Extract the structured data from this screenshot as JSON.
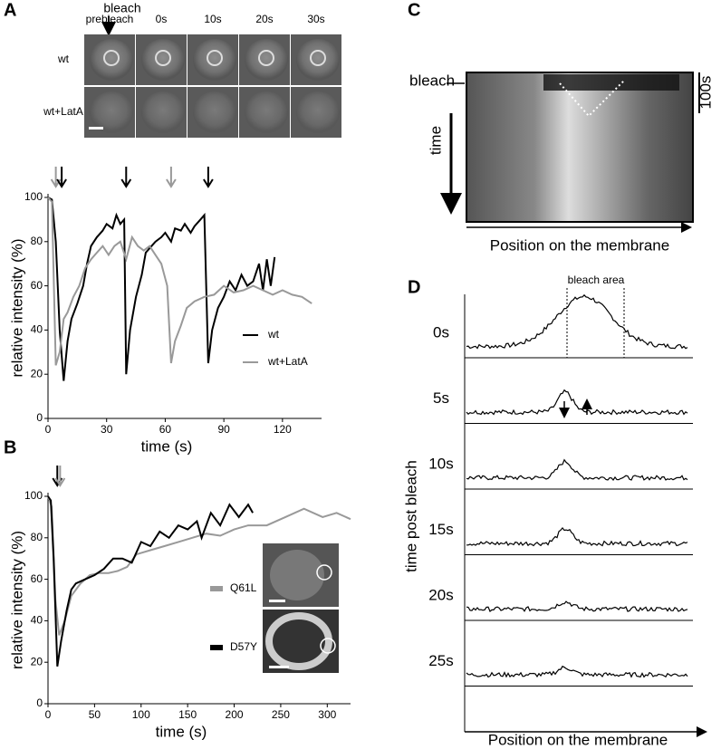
{
  "panel_labels": [
    "A",
    "B",
    "C",
    "D"
  ],
  "panel_a": {
    "bleach_label": "bleach",
    "timepoints": [
      "prebleach",
      "0s",
      "10s",
      "20s",
      "30s"
    ],
    "rows": [
      "wt",
      "wt+LatA"
    ]
  },
  "panel_c": {
    "bleach_label": "bleach",
    "scale_label": "100s",
    "y_label": "time",
    "x_label": "Position on the membrane"
  },
  "panel_d": {
    "annotation": "bleach area",
    "y_label": "time post bleach",
    "x_label": "Position on the membrane",
    "traces": [
      "0s",
      "5s",
      "10s",
      "15s",
      "20s",
      "25s"
    ]
  },
  "chart_data": [
    {
      "type": "line",
      "x_label": "time (s)",
      "y_label": "relative intensity (%)",
      "xlim": [
        0,
        140
      ],
      "xticks": [
        0,
        30,
        60,
        90,
        120
      ],
      "ylim": [
        0,
        100
      ],
      "yticks": [
        0,
        20,
        40,
        60,
        80,
        100
      ],
      "legend": "lower right",
      "bleach_arrows": [
        {
          "x": 4,
          "color": "#999999"
        },
        {
          "x": 7,
          "color": "#000000"
        },
        {
          "x": 40,
          "color": "#000000"
        },
        {
          "x": 63,
          "color": "#999999"
        },
        {
          "x": 82,
          "color": "#000000"
        }
      ],
      "series": [
        {
          "name": "wt",
          "color": "#000000",
          "x": [
            0,
            2,
            4,
            6,
            8,
            10,
            12,
            15,
            18,
            20,
            22,
            25,
            28,
            30,
            33,
            35,
            37,
            39,
            40,
            42,
            45,
            48,
            50,
            53,
            55,
            58,
            60,
            63,
            65,
            68,
            70,
            73,
            75,
            78,
            80,
            82,
            84,
            87,
            90,
            93,
            96,
            99,
            102,
            105,
            108,
            110,
            112,
            114,
            116
          ],
          "values": [
            100,
            99,
            80,
            40,
            17,
            35,
            45,
            52,
            60,
            70,
            78,
            82,
            85,
            88,
            86,
            92,
            88,
            90,
            20,
            40,
            55,
            65,
            75,
            78,
            80,
            82,
            84,
            80,
            86,
            85,
            88,
            84,
            87,
            90,
            92,
            25,
            40,
            50,
            55,
            62,
            58,
            65,
            60,
            62,
            70,
            58,
            72,
            60,
            73
          ]
        },
        {
          "name": "wt+LatA",
          "color": "#999999",
          "x": [
            0,
            2,
            3,
            4,
            6,
            8,
            10,
            13,
            16,
            19,
            22,
            25,
            28,
            31,
            34,
            37,
            40,
            43,
            46,
            49,
            52,
            55,
            58,
            61,
            63,
            65,
            68,
            71,
            75,
            80,
            85,
            90,
            95,
            100,
            105,
            110,
            115,
            120,
            125,
            130,
            135
          ],
          "values": [
            100,
            98,
            60,
            24,
            30,
            45,
            48,
            55,
            60,
            68,
            72,
            75,
            78,
            74,
            78,
            80,
            72,
            82,
            78,
            76,
            78,
            74,
            70,
            60,
            25,
            35,
            42,
            50,
            53,
            55,
            56,
            60,
            57,
            58,
            60,
            58,
            56,
            58,
            56,
            55,
            52
          ]
        }
      ]
    },
    {
      "type": "line",
      "x_label": "time (s)",
      "y_label": "relative intensity (%)",
      "xlim": [
        0,
        325
      ],
      "xticks": [
        0,
        50,
        100,
        150,
        200,
        250,
        300
      ],
      "ylim": [
        0,
        100
      ],
      "yticks": [
        0,
        20,
        40,
        60,
        80,
        100
      ],
      "legend": "center right",
      "bleach_arrows": [
        {
          "x": 10,
          "color": "#000000"
        },
        {
          "x": 13,
          "color": "#999999"
        }
      ],
      "series": [
        {
          "name": "Q61L",
          "color": "#999999",
          "x": [
            0,
            4,
            8,
            12,
            18,
            25,
            35,
            45,
            55,
            65,
            75,
            85,
            95,
            110,
            125,
            140,
            155,
            170,
            185,
            200,
            215,
            235,
            255,
            275,
            295,
            310,
            325
          ],
          "values": [
            100,
            95,
            50,
            33,
            40,
            52,
            58,
            62,
            63,
            63,
            64,
            66,
            72,
            74,
            76,
            78,
            80,
            82,
            81,
            84,
            86,
            86,
            90,
            94,
            90,
            92,
            89
          ]
        },
        {
          "name": "D57Y",
          "color": "#000000",
          "x": [
            0,
            3,
            6,
            10,
            14,
            20,
            25,
            30,
            40,
            50,
            60,
            70,
            80,
            90,
            100,
            110,
            120,
            130,
            140,
            150,
            160,
            165,
            175,
            185,
            195,
            205,
            215,
            220
          ],
          "values": [
            100,
            98,
            70,
            18,
            30,
            45,
            55,
            58,
            60,
            62,
            65,
            70,
            70,
            68,
            78,
            76,
            83,
            80,
            86,
            84,
            88,
            80,
            92,
            86,
            96,
            90,
            96,
            92
          ]
        }
      ]
    }
  ]
}
